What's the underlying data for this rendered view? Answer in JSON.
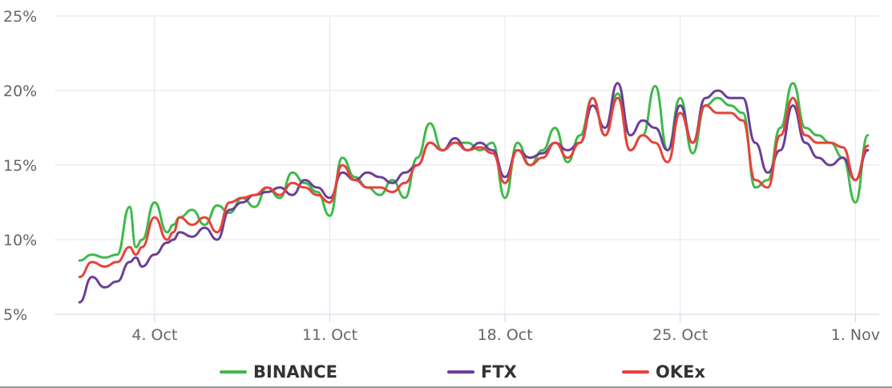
{
  "chart_data": {
    "type": "line",
    "title": "",
    "xlabel": "",
    "ylabel": "",
    "x_start": "2021-10-01",
    "x_end": "2021-11-01",
    "xlim": [
      "2021-10-01",
      "2021-11-01"
    ],
    "ylim": [
      5,
      25
    ],
    "y_ticks": [
      5,
      10,
      15,
      20,
      25
    ],
    "y_tick_labels": [
      "5%",
      "10%",
      "15%",
      "20%",
      "25%"
    ],
    "x_ticks": [
      "2021-10-04",
      "2021-10-11",
      "2021-10-18",
      "2021-10-25",
      "2021-11-01"
    ],
    "x_tick_labels": [
      "4. Oct",
      "11. Oct",
      "18. Oct",
      "25. Oct",
      "1. Nov"
    ],
    "grid": true,
    "legend_position": "bottom",
    "series": [
      {
        "name": "BINANCE",
        "color": "#3fb94a",
        "x": [
          "2021-10-01T00",
          "2021-10-01T12",
          "2021-10-02T00",
          "2021-10-02T12",
          "2021-10-03T00",
          "2021-10-03T06",
          "2021-10-03T12",
          "2021-10-04T00",
          "2021-10-04T12",
          "2021-10-04T18",
          "2021-10-05T00",
          "2021-10-05T12",
          "2021-10-06T00",
          "2021-10-06T12",
          "2021-10-07T00",
          "2021-10-07T12",
          "2021-10-08T00",
          "2021-10-08T12",
          "2021-10-09T00",
          "2021-10-09T12",
          "2021-10-10T00",
          "2021-10-10T12",
          "2021-10-11T00",
          "2021-10-11T12",
          "2021-10-12T00",
          "2021-10-12T12",
          "2021-10-13T00",
          "2021-10-13T12",
          "2021-10-14T00",
          "2021-10-14T12",
          "2021-10-15T00",
          "2021-10-15T12",
          "2021-10-16T00",
          "2021-10-16T12",
          "2021-10-17T00",
          "2021-10-17T12",
          "2021-10-18T00",
          "2021-10-18T12",
          "2021-10-19T00",
          "2021-10-19T12",
          "2021-10-20T00",
          "2021-10-20T12",
          "2021-10-21T00",
          "2021-10-21T12",
          "2021-10-22T00",
          "2021-10-22T12",
          "2021-10-23T00",
          "2021-10-23T12",
          "2021-10-24T00",
          "2021-10-24T12",
          "2021-10-25T00",
          "2021-10-25T12",
          "2021-10-26T00",
          "2021-10-26T12",
          "2021-10-27T00",
          "2021-10-27T12",
          "2021-10-28T00",
          "2021-10-28T12",
          "2021-10-29T00",
          "2021-10-29T12",
          "2021-10-30T00",
          "2021-10-30T12",
          "2021-10-31T00",
          "2021-10-31T12",
          "2021-11-01T00",
          "2021-11-01T12"
        ],
        "values": [
          8.6,
          9.0,
          8.8,
          9.0,
          12.2,
          9.5,
          10.0,
          12.5,
          10.5,
          11.0,
          11.5,
          12.0,
          11.0,
          12.3,
          11.8,
          12.8,
          12.2,
          13.5,
          12.8,
          14.5,
          13.8,
          13.2,
          11.6,
          15.5,
          14.2,
          13.5,
          13.0,
          14.0,
          12.8,
          15.5,
          17.8,
          16.0,
          16.5,
          16.5,
          16.0,
          16.5,
          12.8,
          16.5,
          15.0,
          16.0,
          17.5,
          15.2,
          17.0,
          19.5,
          17.0,
          19.8,
          16.0,
          17.0,
          20.3,
          16.0,
          19.5,
          15.8,
          19.0,
          19.5,
          19.0,
          18.5,
          13.5,
          14.0,
          17.5,
          20.5,
          17.5,
          17.0,
          16.5,
          15.5,
          12.5,
          17.0
        ]
      },
      {
        "name": "FTX",
        "color": "#6a3f96",
        "x": [
          "2021-10-01T00",
          "2021-10-01T12",
          "2021-10-02T00",
          "2021-10-02T12",
          "2021-10-03T00",
          "2021-10-03T06",
          "2021-10-03T12",
          "2021-10-04T00",
          "2021-10-04T12",
          "2021-10-04T18",
          "2021-10-05T00",
          "2021-10-05T12",
          "2021-10-06T00",
          "2021-10-06T12",
          "2021-10-07T00",
          "2021-10-07T12",
          "2021-10-08T00",
          "2021-10-08T12",
          "2021-10-09T00",
          "2021-10-09T12",
          "2021-10-10T00",
          "2021-10-10T12",
          "2021-10-11T00",
          "2021-10-11T12",
          "2021-10-12T00",
          "2021-10-12T12",
          "2021-10-13T00",
          "2021-10-13T12",
          "2021-10-14T00",
          "2021-10-14T12",
          "2021-10-15T00",
          "2021-10-15T12",
          "2021-10-16T00",
          "2021-10-16T12",
          "2021-10-17T00",
          "2021-10-17T12",
          "2021-10-18T00",
          "2021-10-18T12",
          "2021-10-19T00",
          "2021-10-19T12",
          "2021-10-20T00",
          "2021-10-20T12",
          "2021-10-21T00",
          "2021-10-21T12",
          "2021-10-22T00",
          "2021-10-22T12",
          "2021-10-23T00",
          "2021-10-23T12",
          "2021-10-24T00",
          "2021-10-24T12",
          "2021-10-25T00",
          "2021-10-25T12",
          "2021-10-26T00",
          "2021-10-26T12",
          "2021-10-27T00",
          "2021-10-27T12",
          "2021-10-28T00",
          "2021-10-28T12",
          "2021-10-29T00",
          "2021-10-29T12",
          "2021-10-30T00",
          "2021-10-30T12",
          "2021-10-31T00",
          "2021-10-31T12",
          "2021-11-01T00",
          "2021-11-01T12"
        ],
        "values": [
          5.8,
          7.5,
          6.8,
          7.2,
          8.5,
          8.8,
          8.2,
          9.0,
          9.8,
          10.0,
          10.5,
          10.2,
          10.8,
          10.0,
          12.0,
          12.5,
          13.0,
          13.2,
          13.5,
          13.0,
          14.0,
          13.5,
          12.8,
          14.5,
          14.0,
          14.5,
          14.2,
          13.8,
          14.5,
          15.0,
          16.5,
          16.0,
          16.8,
          16.0,
          16.5,
          16.0,
          14.2,
          16.0,
          15.5,
          15.8,
          16.5,
          16.0,
          16.5,
          19.0,
          17.5,
          20.5,
          17.0,
          18.0,
          17.5,
          16.0,
          19.0,
          16.5,
          19.5,
          20.0,
          19.5,
          19.5,
          16.5,
          14.5,
          16.0,
          19.0,
          16.5,
          15.5,
          15.0,
          15.5,
          14.0,
          16.0
        ]
      },
      {
        "name": "OKEx",
        "color": "#e8423a",
        "x": [
          "2021-10-01T00",
          "2021-10-01T12",
          "2021-10-02T00",
          "2021-10-02T12",
          "2021-10-03T00",
          "2021-10-03T06",
          "2021-10-03T12",
          "2021-10-04T00",
          "2021-10-04T12",
          "2021-10-04T18",
          "2021-10-05T00",
          "2021-10-05T12",
          "2021-10-06T00",
          "2021-10-06T12",
          "2021-10-07T00",
          "2021-10-07T12",
          "2021-10-08T00",
          "2021-10-08T12",
          "2021-10-09T00",
          "2021-10-09T12",
          "2021-10-10T00",
          "2021-10-10T12",
          "2021-10-11T00",
          "2021-10-11T12",
          "2021-10-12T00",
          "2021-10-12T12",
          "2021-10-13T00",
          "2021-10-13T12",
          "2021-10-14T00",
          "2021-10-14T12",
          "2021-10-15T00",
          "2021-10-15T12",
          "2021-10-16T00",
          "2021-10-16T12",
          "2021-10-17T00",
          "2021-10-17T12",
          "2021-10-18T00",
          "2021-10-18T12",
          "2021-10-19T00",
          "2021-10-19T12",
          "2021-10-20T00",
          "2021-10-20T12",
          "2021-10-21T00",
          "2021-10-21T12",
          "2021-10-22T00",
          "2021-10-22T12",
          "2021-10-23T00",
          "2021-10-23T12",
          "2021-10-24T00",
          "2021-10-24T12",
          "2021-10-25T00",
          "2021-10-25T12",
          "2021-10-26T00",
          "2021-10-26T12",
          "2021-10-27T00",
          "2021-10-27T12",
          "2021-10-28T00",
          "2021-10-28T12",
          "2021-10-29T00",
          "2021-10-29T12",
          "2021-10-30T00",
          "2021-10-30T12",
          "2021-10-31T00",
          "2021-10-31T12",
          "2021-11-01T00",
          "2021-11-01T12"
        ],
        "values": [
          7.5,
          8.5,
          8.2,
          8.5,
          9.5,
          9.0,
          9.5,
          11.5,
          10.0,
          10.5,
          11.5,
          11.0,
          11.5,
          10.5,
          12.5,
          12.8,
          13.0,
          13.5,
          13.0,
          13.8,
          13.5,
          13.0,
          12.5,
          15.0,
          14.0,
          13.5,
          13.5,
          13.2,
          13.8,
          15.0,
          16.5,
          16.0,
          16.5,
          16.0,
          16.2,
          15.8,
          13.8,
          16.0,
          15.0,
          15.5,
          16.5,
          15.5,
          16.5,
          19.5,
          17.0,
          19.5,
          16.0,
          17.0,
          16.5,
          15.2,
          18.5,
          16.5,
          19.0,
          18.5,
          18.5,
          18.0,
          14.0,
          13.5,
          17.0,
          19.5,
          17.0,
          16.5,
          16.5,
          16.2,
          14.0,
          16.3
        ]
      }
    ]
  }
}
